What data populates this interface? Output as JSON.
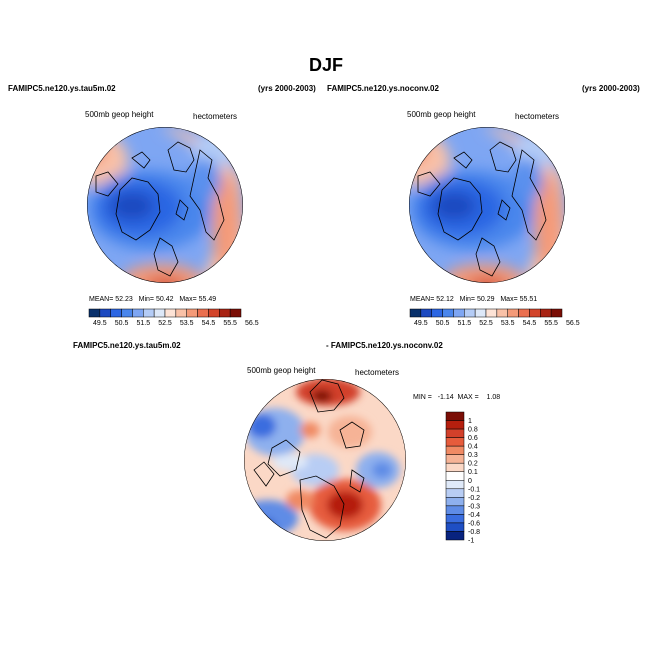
{
  "title": "DJF",
  "headers": {
    "left_case": "FAMIPC5.ne120.ys.tau5m.02",
    "left_years": "(yrs 2000-2003)",
    "right_case": "FAMIPC5.ne120.ys.noconv.02",
    "right_years": "(yrs 2000-2003)",
    "diff_left": "FAMIPC5.ne120.ys.tau5m.02",
    "diff_right": "- FAMIPC5.ne120.ys.noconv.02"
  },
  "panels": [
    {
      "variable": "500mb geop height",
      "units": "hectometers",
      "stats": {
        "mean_label": "MEAN=",
        "mean": "52.23",
        "min_label": "Min=",
        "min": "50.42",
        "max_label": "Max=",
        "max": "55.49"
      }
    },
    {
      "variable": "500mb geop height",
      "units": "hectometers",
      "stats": {
        "mean_label": "MEAN=",
        "mean": "52.12",
        "min_label": "Min=",
        "min": "50.29",
        "max_label": "Max=",
        "max": "55.51"
      }
    },
    {
      "variable": "500mb geop height",
      "units": "hectometers",
      "stats": {
        "text": "MIN =   -1.14  MAX =    1.08"
      }
    }
  ],
  "colors": {
    "abs_scale": [
      "#08306b",
      "#1c49c0",
      "#2c66e3",
      "#4a86ec",
      "#7ea6f3",
      "#b4ccf6",
      "#dde8f8",
      "#fde3d6",
      "#f9c1a7",
      "#f49a78",
      "#ea6f4f",
      "#d2442a",
      "#a82313",
      "#7a0d05"
    ],
    "diff_scale": [
      "#7a0d05",
      "#b51f0e",
      "#d2402a",
      "#e65c3c",
      "#f08a64",
      "#f6b396",
      "#fbd8c6",
      "#ffffff",
      "#dfe9f8",
      "#b8cdf4",
      "#8eb0ee",
      "#5f8ce6",
      "#3a6ddf",
      "#1f4fc4",
      "#08237f"
    ]
  },
  "chart_data": [
    {
      "type": "heatmap",
      "title": "500mb geop height",
      "case": "FAMIPC5.ne120.ys.tau5m.02",
      "units": "hectometers",
      "projection": "polar stereographic (north)",
      "colorbar_labels": [
        "49.5",
        "50.5",
        "51.5",
        "52.5",
        "53.5",
        "54.5",
        "55.5",
        "56.5"
      ],
      "levels": [
        49.5,
        50.0,
        50.5,
        51.0,
        51.5,
        52.0,
        52.5,
        53.0,
        53.5,
        54.0,
        54.5,
        55.0,
        55.5,
        56.0,
        56.5
      ],
      "mean": 52.23,
      "min": 50.42,
      "max": 55.49
    },
    {
      "type": "heatmap",
      "title": "500mb geop height",
      "case": "FAMIPC5.ne120.ys.noconv.02",
      "units": "hectometers",
      "projection": "polar stereographic (north)",
      "colorbar_labels": [
        "49.5",
        "50.5",
        "51.5",
        "52.5",
        "53.5",
        "54.5",
        "55.5",
        "56.5"
      ],
      "levels": [
        49.5,
        50.0,
        50.5,
        51.0,
        51.5,
        52.0,
        52.5,
        53.0,
        53.5,
        54.0,
        54.5,
        55.0,
        55.5,
        56.0,
        56.5
      ],
      "mean": 52.12,
      "min": 50.29,
      "max": 55.51
    },
    {
      "type": "heatmap",
      "title": "500mb geop height",
      "case": "FAMIPC5.ne120.ys.tau5m.02 - FAMIPC5.ne120.ys.noconv.02",
      "units": "hectometers",
      "projection": "polar stereographic (north)",
      "colorbar_labels": [
        "1",
        "0.8",
        "0.6",
        "0.4",
        "0.3",
        "0.2",
        "0.1",
        "0",
        "-0.1",
        "-0.2",
        "-0.3",
        "-0.4",
        "-0.6",
        "-0.8",
        "-1"
      ],
      "min": -1.14,
      "max": 1.08
    }
  ]
}
